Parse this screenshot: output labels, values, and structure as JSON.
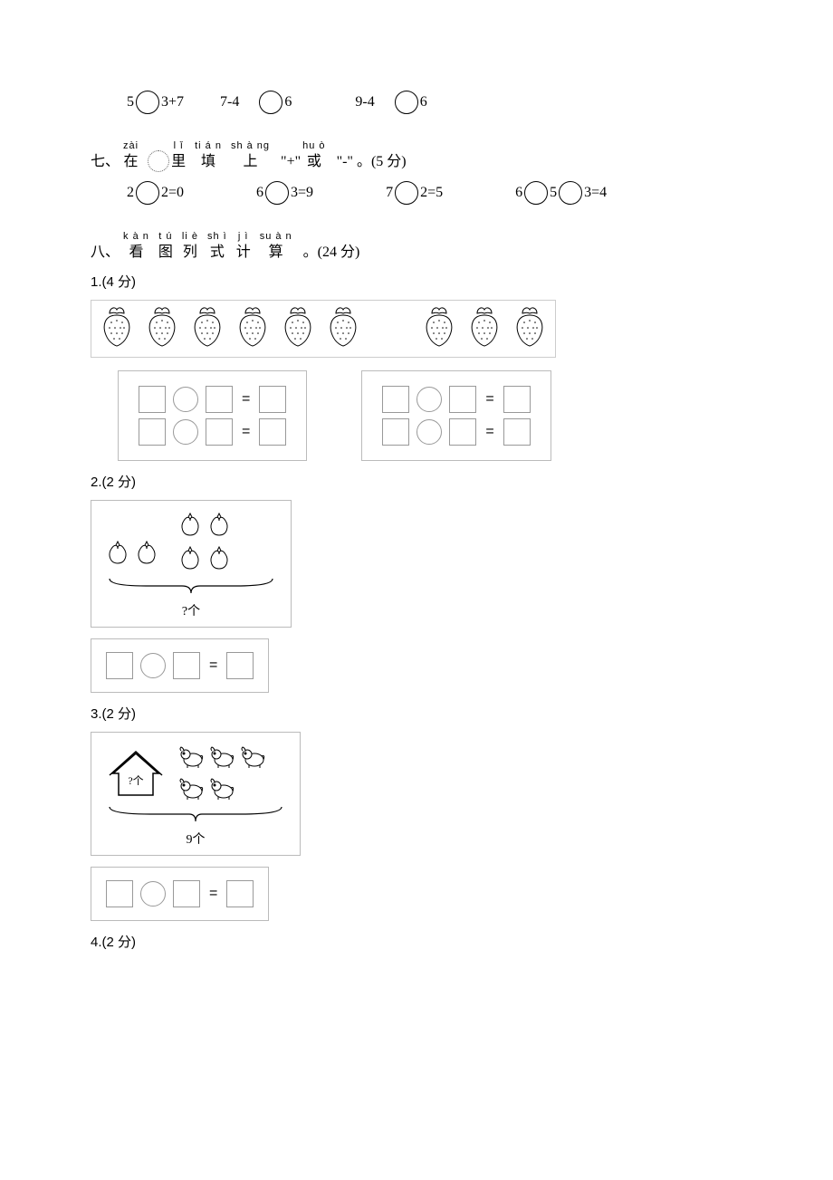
{
  "topRow": {
    "e1_left": "5",
    "e1_right": "3+7",
    "e2_left": "7-4",
    "e2_right": "6",
    "e3_left": "9-4",
    "e3_right": "6"
  },
  "section7": {
    "num": "七、",
    "chars": [
      {
        "pinyin": "zài",
        "han": "在"
      }
    ],
    "mid1": [
      {
        "pinyin": "l ǐ",
        "han": "里"
      },
      {
        "pinyin": "ti á n",
        "han": "填"
      },
      {
        "pinyin": "sh à ng",
        "han": "上"
      }
    ],
    "plus": "\"+\"",
    "mid2": [
      {
        "pinyin": "hu ò",
        "han": "或"
      }
    ],
    "minus": "\"-\"",
    "tail": "。(5 分)",
    "eqs": {
      "a_l": "2",
      "a_r": "2=0",
      "b_l": "6",
      "b_r": "3=9",
      "c_l": "7",
      "c_r": "2=5",
      "d_l": "6",
      "d_m": "5",
      "d_r": "3=4"
    }
  },
  "section8": {
    "num": "八、",
    "chars": [
      {
        "pinyin": "k à n",
        "han": "看"
      },
      {
        "pinyin": "t ú",
        "han": "图"
      },
      {
        "pinyin": "li è",
        "han": "列"
      },
      {
        "pinyin": "sh ì",
        "han": "式"
      },
      {
        "pinyin": "j ì",
        "han": "计"
      },
      {
        "pinyin": "su à n",
        "han": "算"
      }
    ],
    "tail": "。(24 分)"
  },
  "q1": {
    "label": "1.(4  分)",
    "leftCount": 6,
    "rightCount": 3
  },
  "q2": {
    "label": "2.(2  分)",
    "bracket": "?个"
  },
  "q3": {
    "label": "3.(2  分)",
    "houseLabel": "?个",
    "bracket": "9个"
  },
  "q4": {
    "label": "4.(2  分)"
  },
  "eqSign": "="
}
